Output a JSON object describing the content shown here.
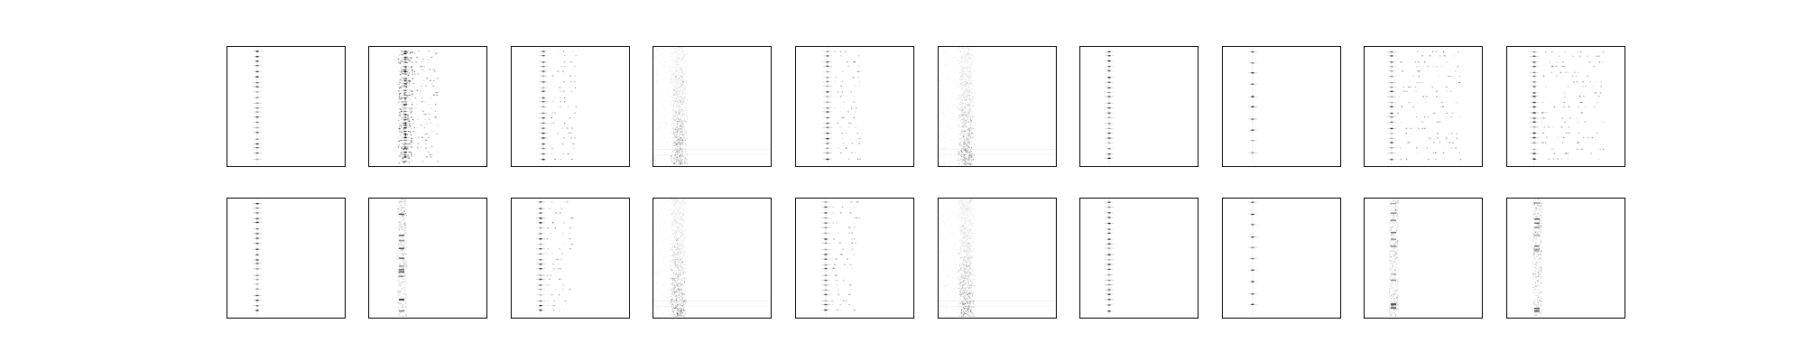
{
  "figure": {
    "background": "#ffffff",
    "frame_color": "#000000",
    "ink_color": "#000000",
    "rows": 2,
    "columns": 10,
    "panels": [
      {
        "row": 0,
        "col": 0,
        "pattern": "single-column-rows"
      },
      {
        "row": 0,
        "col": 1,
        "pattern": "dense-column-rows"
      },
      {
        "row": 0,
        "col": 2,
        "pattern": "column-with-rows"
      },
      {
        "row": 0,
        "col": 3,
        "pattern": "noisy-band"
      },
      {
        "row": 0,
        "col": 4,
        "pattern": "column-with-rows"
      },
      {
        "row": 0,
        "col": 5,
        "pattern": "noisy-band"
      },
      {
        "row": 0,
        "col": 6,
        "pattern": "single-column-rows"
      },
      {
        "row": 0,
        "col": 7,
        "pattern": "sparse-column"
      },
      {
        "row": 0,
        "col": 8,
        "pattern": "multi-column-rows"
      },
      {
        "row": 0,
        "col": 9,
        "pattern": "multi-column-rows"
      },
      {
        "row": 1,
        "col": 0,
        "pattern": "single-column-rows"
      },
      {
        "row": 1,
        "col": 1,
        "pattern": "faint-band"
      },
      {
        "row": 1,
        "col": 2,
        "pattern": "column-with-rows"
      },
      {
        "row": 1,
        "col": 3,
        "pattern": "noisy-band"
      },
      {
        "row": 1,
        "col": 4,
        "pattern": "column-with-rows"
      },
      {
        "row": 1,
        "col": 5,
        "pattern": "noisy-band"
      },
      {
        "row": 1,
        "col": 6,
        "pattern": "single-column-rows"
      },
      {
        "row": 1,
        "col": 7,
        "pattern": "sparse-column"
      },
      {
        "row": 1,
        "col": 8,
        "pattern": "faint-band"
      },
      {
        "row": 1,
        "col": 9,
        "pattern": "faint-band"
      }
    ]
  }
}
